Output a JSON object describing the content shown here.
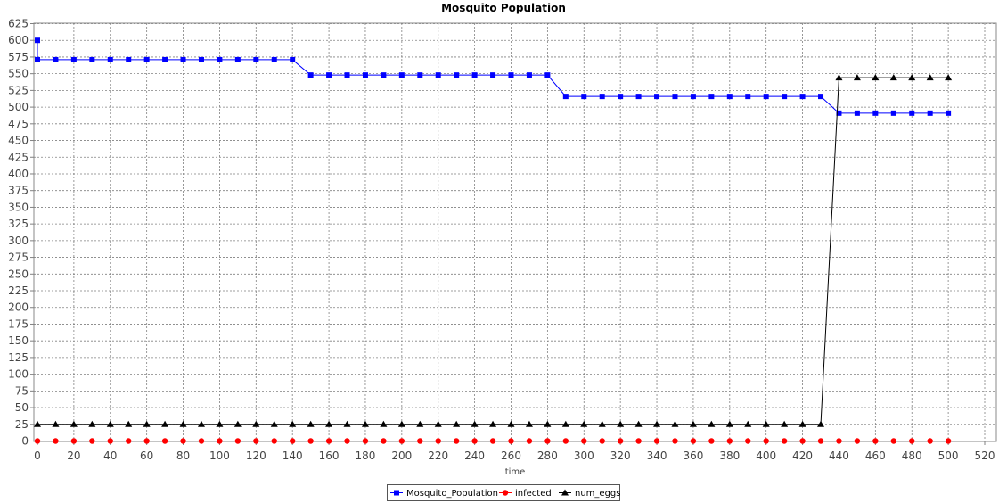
{
  "chart_data": {
    "type": "line",
    "title": "Mosquito Population",
    "xlabel": "time",
    "ylabel": "",
    "xlim": [
      0,
      525
    ],
    "ylim": [
      0,
      625
    ],
    "x_ticks": [
      0,
      20,
      40,
      60,
      80,
      100,
      120,
      140,
      160,
      180,
      200,
      220,
      240,
      260,
      280,
      300,
      320,
      340,
      360,
      380,
      400,
      420,
      440,
      460,
      480,
      500,
      520
    ],
    "y_ticks": [
      0,
      25,
      50,
      75,
      100,
      125,
      150,
      175,
      200,
      225,
      250,
      275,
      300,
      325,
      350,
      375,
      400,
      425,
      450,
      475,
      500,
      525,
      550,
      575,
      600,
      625
    ],
    "grid": true,
    "legend_position": "bottom-center",
    "series": [
      {
        "name": "Mosquito_Population",
        "color": "#0000ff",
        "marker": "square",
        "points": [
          [
            0,
            600
          ],
          [
            0,
            571
          ],
          [
            10,
            571
          ],
          [
            20,
            571
          ],
          [
            30,
            571
          ],
          [
            40,
            571
          ],
          [
            50,
            571
          ],
          [
            60,
            571
          ],
          [
            70,
            571
          ],
          [
            80,
            571
          ],
          [
            90,
            571
          ],
          [
            100,
            571
          ],
          [
            110,
            571
          ],
          [
            120,
            571
          ],
          [
            130,
            571
          ],
          [
            140,
            571
          ],
          [
            150,
            548
          ],
          [
            160,
            548
          ],
          [
            170,
            548
          ],
          [
            180,
            548
          ],
          [
            190,
            548
          ],
          [
            200,
            548
          ],
          [
            210,
            548
          ],
          [
            220,
            548
          ],
          [
            230,
            548
          ],
          [
            240,
            548
          ],
          [
            250,
            548
          ],
          [
            260,
            548
          ],
          [
            270,
            548
          ],
          [
            280,
            548
          ],
          [
            290,
            516
          ],
          [
            300,
            516
          ],
          [
            310,
            516
          ],
          [
            320,
            516
          ],
          [
            330,
            516
          ],
          [
            340,
            516
          ],
          [
            350,
            516
          ],
          [
            360,
            516
          ],
          [
            370,
            516
          ],
          [
            380,
            516
          ],
          [
            390,
            516
          ],
          [
            400,
            516
          ],
          [
            410,
            516
          ],
          [
            420,
            516
          ],
          [
            430,
            516
          ],
          [
            440,
            491
          ],
          [
            450,
            491
          ],
          [
            460,
            491
          ],
          [
            470,
            491
          ],
          [
            480,
            491
          ],
          [
            490,
            491
          ],
          [
            500,
            491
          ]
        ]
      },
      {
        "name": "infected",
        "color": "#ff0000",
        "marker": "circle",
        "points": [
          [
            0,
            0
          ],
          [
            10,
            0
          ],
          [
            20,
            0
          ],
          [
            30,
            0
          ],
          [
            40,
            0
          ],
          [
            50,
            0
          ],
          [
            60,
            0
          ],
          [
            70,
            0
          ],
          [
            80,
            0
          ],
          [
            90,
            0
          ],
          [
            100,
            0
          ],
          [
            110,
            0
          ],
          [
            120,
            0
          ],
          [
            130,
            0
          ],
          [
            140,
            0
          ],
          [
            150,
            0
          ],
          [
            160,
            0
          ],
          [
            170,
            0
          ],
          [
            180,
            0
          ],
          [
            190,
            0
          ],
          [
            200,
            0
          ],
          [
            210,
            0
          ],
          [
            220,
            0
          ],
          [
            230,
            0
          ],
          [
            240,
            0
          ],
          [
            250,
            0
          ],
          [
            260,
            0
          ],
          [
            270,
            0
          ],
          [
            280,
            0
          ],
          [
            290,
            0
          ],
          [
            300,
            0
          ],
          [
            310,
            0
          ],
          [
            320,
            0
          ],
          [
            330,
            0
          ],
          [
            340,
            0
          ],
          [
            350,
            0
          ],
          [
            360,
            0
          ],
          [
            370,
            0
          ],
          [
            380,
            0
          ],
          [
            390,
            0
          ],
          [
            400,
            0
          ],
          [
            410,
            0
          ],
          [
            420,
            0
          ],
          [
            430,
            0
          ],
          [
            440,
            0
          ],
          [
            450,
            0
          ],
          [
            460,
            0
          ],
          [
            470,
            0
          ],
          [
            480,
            0
          ],
          [
            490,
            0
          ],
          [
            500,
            0
          ]
        ]
      },
      {
        "name": "num_eggs",
        "color": "#000000",
        "marker": "triangle",
        "points": [
          [
            0,
            25
          ],
          [
            10,
            25
          ],
          [
            20,
            25
          ],
          [
            30,
            25
          ],
          [
            40,
            25
          ],
          [
            50,
            25
          ],
          [
            60,
            25
          ],
          [
            70,
            25
          ],
          [
            80,
            25
          ],
          [
            90,
            25
          ],
          [
            100,
            25
          ],
          [
            110,
            25
          ],
          [
            120,
            25
          ],
          [
            130,
            25
          ],
          [
            140,
            25
          ],
          [
            150,
            25
          ],
          [
            160,
            25
          ],
          [
            170,
            25
          ],
          [
            180,
            25
          ],
          [
            190,
            25
          ],
          [
            200,
            25
          ],
          [
            210,
            25
          ],
          [
            220,
            25
          ],
          [
            230,
            25
          ],
          [
            240,
            25
          ],
          [
            250,
            25
          ],
          [
            260,
            25
          ],
          [
            270,
            25
          ],
          [
            280,
            25
          ],
          [
            290,
            25
          ],
          [
            300,
            25
          ],
          [
            310,
            25
          ],
          [
            320,
            25
          ],
          [
            330,
            25
          ],
          [
            340,
            25
          ],
          [
            350,
            25
          ],
          [
            360,
            25
          ],
          [
            370,
            25
          ],
          [
            380,
            25
          ],
          [
            390,
            25
          ],
          [
            400,
            25
          ],
          [
            410,
            25
          ],
          [
            420,
            25
          ],
          [
            430,
            25
          ],
          [
            440,
            544
          ],
          [
            450,
            544
          ],
          [
            460,
            544
          ],
          [
            470,
            544
          ],
          [
            480,
            544
          ],
          [
            490,
            544
          ],
          [
            500,
            544
          ]
        ]
      }
    ]
  }
}
